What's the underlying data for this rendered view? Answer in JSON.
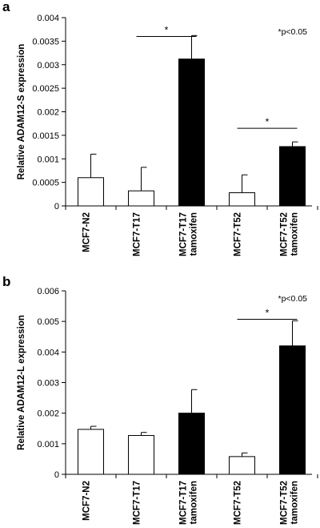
{
  "chart_data": [
    {
      "type": "bar",
      "panel": "a",
      "ylabel": "Relative ADAM12-S expression",
      "ylim": [
        0,
        0.004
      ],
      "yticks": [
        "0",
        "0.0005",
        "0.001",
        "0.0015",
        "0.002",
        "0.0025",
        "0.003",
        "0.0035",
        "0.004"
      ],
      "categories": [
        {
          "lines": [
            "MCF7-N2"
          ],
          "value": 0.0006,
          "error": 0.0005,
          "fill": "#ffffff"
        },
        {
          "lines": [
            "MCF7-T17"
          ],
          "value": 0.00032,
          "error": 0.0005,
          "fill": "#ffffff"
        },
        {
          "lines": [
            "MCF7-T17",
            "tamoxifen"
          ],
          "value": 0.00312,
          "error": 0.0005,
          "fill": "#000000"
        },
        {
          "lines": [
            "MCF7-T52"
          ],
          "value": 0.00028,
          "error": 0.00038,
          "fill": "#ffffff"
        },
        {
          "lines": [
            "MCF7-T52",
            "tamoxifen"
          ],
          "value": 0.00126,
          "error": 0.0001,
          "fill": "#000000"
        }
      ],
      "significance": [
        {
          "from": 1,
          "to": 2,
          "y": 0.0036,
          "label": "*"
        },
        {
          "from": 3,
          "to": 4,
          "y": 0.00165,
          "label": "*"
        }
      ],
      "note": "*p<0.05"
    },
    {
      "type": "bar",
      "panel": "b",
      "ylabel": "Relative ADAM12-L expression",
      "ylim": [
        0,
        0.006
      ],
      "yticks": [
        "0",
        "0.001",
        "0.002",
        "0.003",
        "0.004",
        "0.005",
        "0.006"
      ],
      "categories": [
        {
          "lines": [
            "MCF7-N2"
          ],
          "value": 0.00147,
          "error": 0.0001,
          "fill": "#ffffff"
        },
        {
          "lines": [
            "MCF7-T17"
          ],
          "value": 0.00127,
          "error": 0.0001,
          "fill": "#ffffff"
        },
        {
          "lines": [
            "MCF7-T17",
            "tamoxifen"
          ],
          "value": 0.002,
          "error": 0.00077,
          "fill": "#000000"
        },
        {
          "lines": [
            "MCF7-T52"
          ],
          "value": 0.00058,
          "error": 0.00012,
          "fill": "#ffffff"
        },
        {
          "lines": [
            "MCF7-T52",
            "tamoxifen"
          ],
          "value": 0.0042,
          "error": 0.00082,
          "fill": "#000000"
        }
      ],
      "significance": [
        {
          "from": 3,
          "to": 4,
          "y": 0.00507,
          "label": "*"
        }
      ],
      "note": "*p<0.05"
    }
  ]
}
